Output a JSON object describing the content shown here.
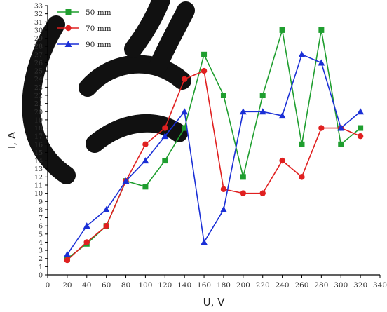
{
  "chart_data": {
    "type": "line",
    "xlabel": "U, V",
    "ylabel": "I, A",
    "xlim": [
      0,
      340
    ],
    "ylim": [
      0,
      33
    ],
    "x_ticks": [
      0,
      20,
      40,
      60,
      80,
      100,
      120,
      140,
      160,
      180,
      200,
      220,
      240,
      260,
      280,
      300,
      320,
      340
    ],
    "y_ticks": [
      0,
      1,
      2,
      3,
      4,
      5,
      6,
      7,
      8,
      9,
      10,
      11,
      12,
      13,
      14,
      15,
      16,
      17,
      18,
      19,
      20,
      21,
      22,
      23,
      24,
      25,
      26,
      27,
      28,
      29,
      30,
      31,
      32,
      33
    ],
    "grid": false,
    "legend_position": "top-left",
    "x": [
      20,
      40,
      60,
      80,
      100,
      120,
      140,
      160,
      180,
      200,
      220,
      240,
      260,
      280,
      300,
      320
    ],
    "series": [
      {
        "name": "50 mm",
        "color": "#1f9e2f",
        "marker": "square",
        "values": [
          2,
          3.8,
          6,
          11.5,
          10.8,
          14,
          18,
          27,
          22,
          12,
          22,
          30,
          16,
          30,
          16,
          18
        ]
      },
      {
        "name": "70 mm",
        "color": "#e02020",
        "marker": "circle",
        "values": [
          1.8,
          4,
          6,
          11.5,
          16,
          18,
          24,
          25,
          10.5,
          10,
          10,
          14,
          12,
          18,
          18,
          17
        ]
      },
      {
        "name": "90 mm",
        "color": "#1a2fd6",
        "marker": "triangle",
        "values": [
          2.5,
          6,
          8,
          11.5,
          14,
          17,
          20,
          4,
          8,
          20,
          20,
          19.5,
          27,
          26,
          18,
          20
        ]
      }
    ]
  }
}
